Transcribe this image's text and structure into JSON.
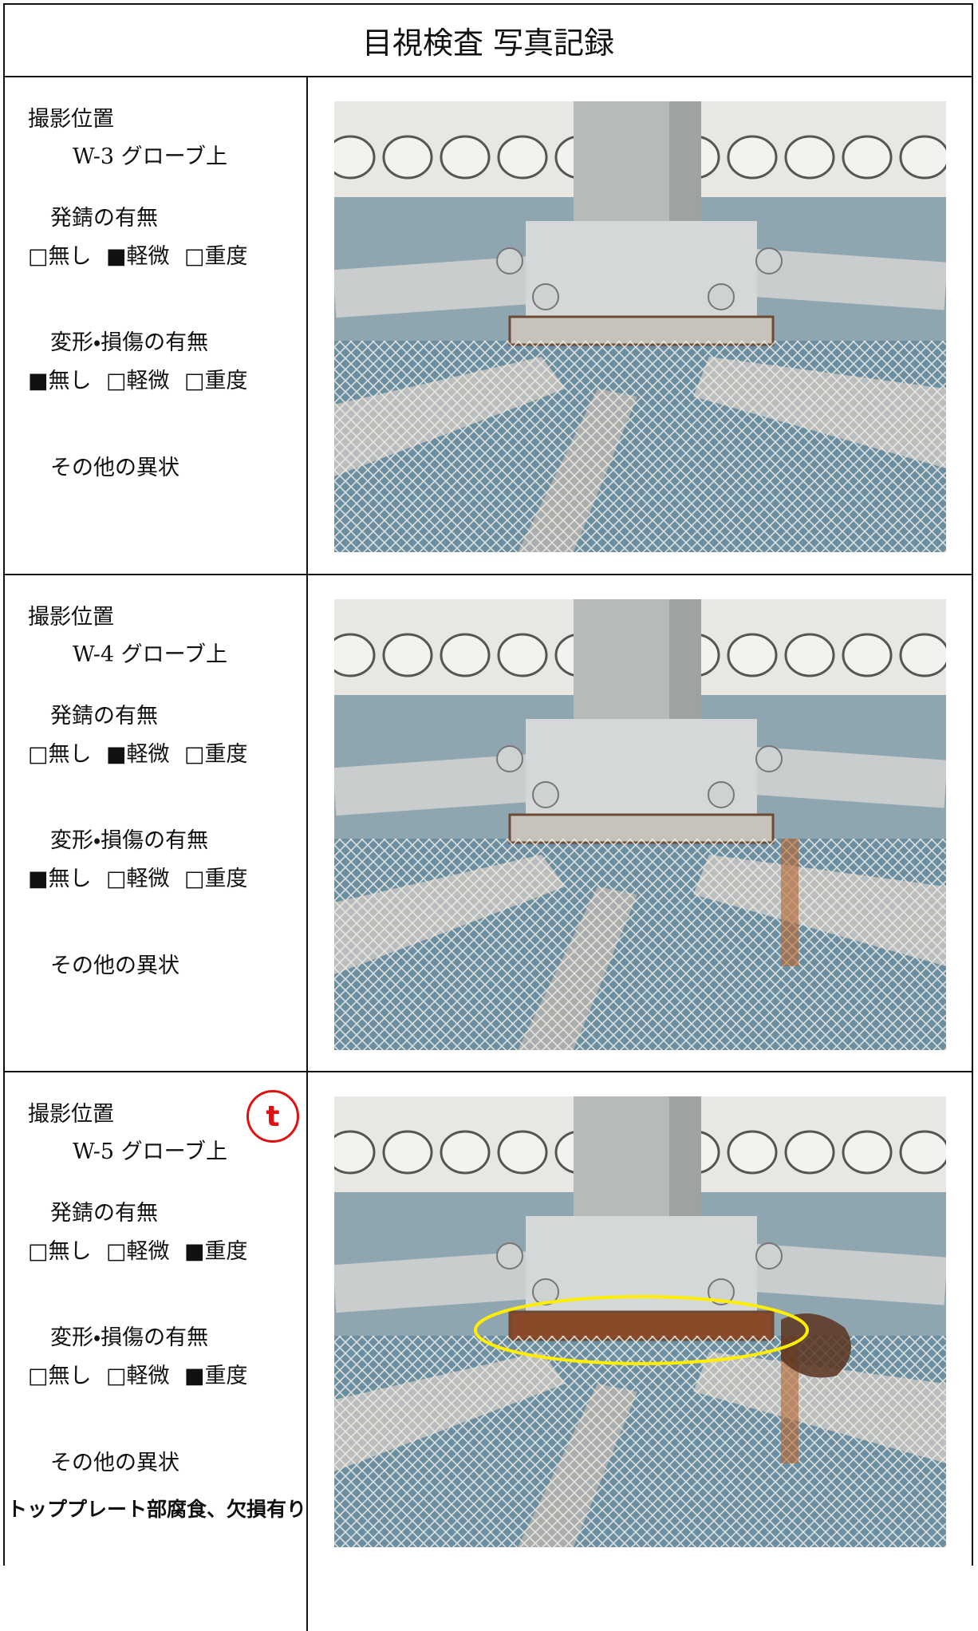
{
  "header": {
    "title": "目視検査 写真記録"
  },
  "records": [
    {
      "position_label": "撮影位置",
      "position": "W-3 グローブ上",
      "rust_label": "発錆の有無",
      "rust_options": [
        "□無し",
        "■軽微",
        "□重度"
      ],
      "damage_label": "変形・損傷の有無",
      "damage_options": [
        "■無し",
        "□軽微",
        "□重度"
      ],
      "other_label": "その他の異状"
    },
    {
      "position_label": "撮影位置",
      "position": "W-4 グローブ上",
      "rust_label": "発錆の有無",
      "rust_options": [
        "□無し",
        "■軽微",
        "□重度"
      ],
      "damage_label": "変形・損傷の有無",
      "damage_options": [
        "■無し",
        "□軽微",
        "□重度"
      ],
      "other_label": "その他の異状"
    },
    {
      "position_label": "撮影位置",
      "position": "W-5 グローブ上",
      "marker": "t",
      "rust_label": "発錆の有無",
      "rust_options": [
        "□無し",
        "□軽微",
        "■重度"
      ],
      "damage_label": "変形・損傷の有無",
      "damage_options": [
        "□無し",
        "□軽微",
        "■重度"
      ],
      "other_label": "その他の異状",
      "other_note": "トッププレート部腐食、欠損有り"
    }
  ]
}
